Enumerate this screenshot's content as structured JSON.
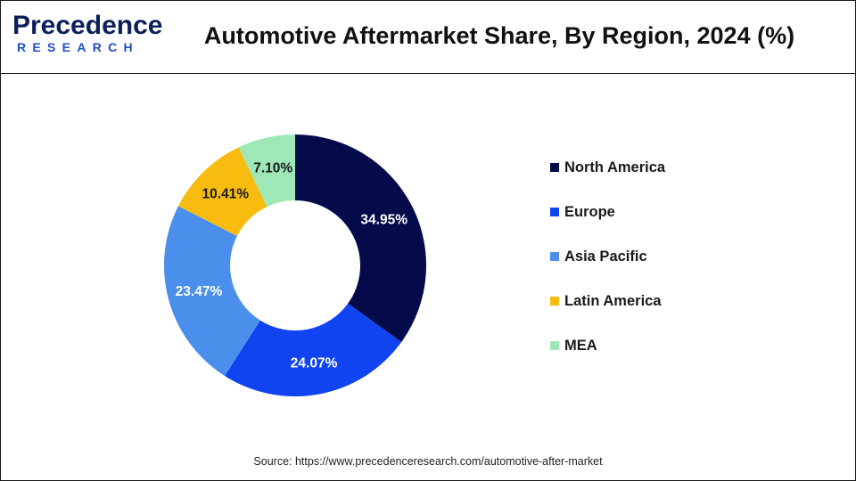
{
  "brand": {
    "logo_top": "Precedence",
    "logo_bottom": "RESEARCH"
  },
  "chart_data": {
    "type": "pie",
    "variant": "donut",
    "title": "Automotive Aftermarket Share, By Region, 2024 (%)",
    "categories": [
      "North America",
      "Europe",
      "Asia Pacific",
      "Latin America",
      "MEA"
    ],
    "values": [
      34.95,
      24.07,
      23.47,
      10.41,
      7.1
    ],
    "labels": [
      "34.95%",
      "24.07%",
      "23.47%",
      "10.41%",
      "7.10%"
    ],
    "colors": [
      "#050a4a",
      "#0f44f0",
      "#4b8fec",
      "#f8bb10",
      "#9ee8b8"
    ],
    "label_colors": [
      "#ffffff",
      "#ffffff",
      "#ffffff",
      "#1a1a1a",
      "#1a1a1a"
    ],
    "start_angle": "12 o'clock",
    "direction": "clockwise",
    "legend_position": "right"
  },
  "source": "Source: https://www.precedenceresearch.com/automotive-after-market"
}
